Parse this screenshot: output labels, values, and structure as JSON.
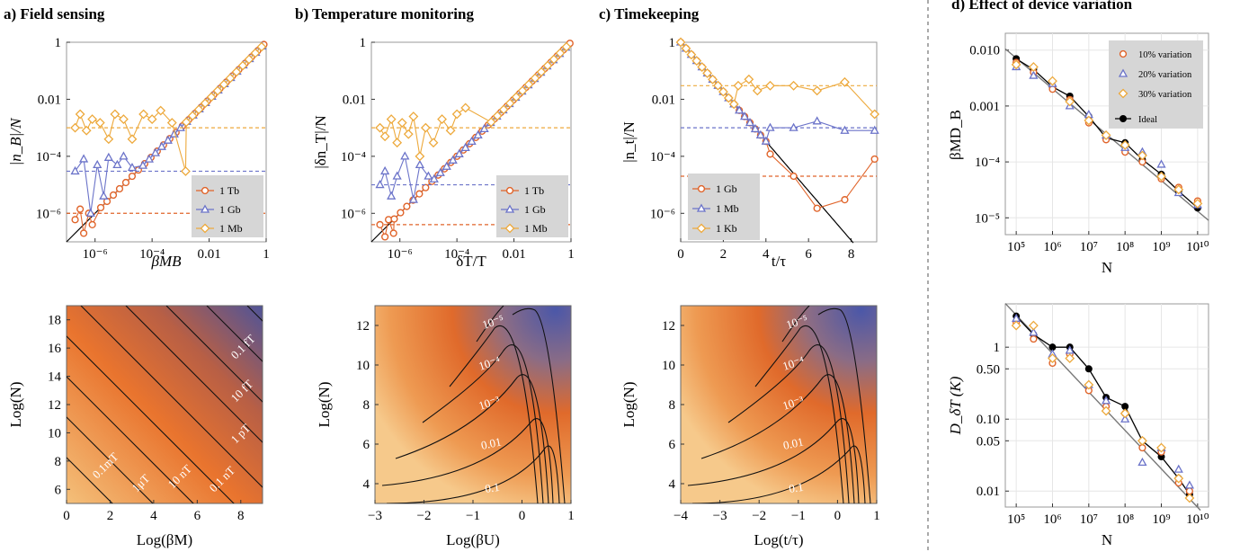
{
  "panels": {
    "a": {
      "title": "a) Field sensing",
      "xlabel": "βMB",
      "ylabel": "|n_B|/N",
      "bottom_xlabel": "Log(βM)",
      "bottom_ylabel": "Log(N)"
    },
    "b": {
      "title": "b) Temperature monitoring",
      "xlabel": "δT/T",
      "ylabel": "|δn_T|/N",
      "bottom_xlabel": "Log(βU)",
      "bottom_ylabel": "Log(N)"
    },
    "c": {
      "title": "c) Timekeeping",
      "xlabel": "t/τ",
      "ylabel": "|n_t|/N",
      "bottom_xlabel": "Log(t/τ)",
      "bottom_ylabel": "Log(N)"
    },
    "d": {
      "title": "d) Effect of device variation",
      "top_xlabel": "N",
      "top_ylabel": "βMD_B",
      "bottom_xlabel": "N",
      "bottom_ylabel": "D_δT (K)"
    }
  },
  "colors": {
    "orange": "#e0642a",
    "blue": "#6b73c9",
    "gold": "#eda93c",
    "black": "#000000"
  },
  "chart_data": [
    {
      "id": "a_top",
      "type": "line",
      "log_x": true,
      "log_y": true,
      "xlim": [
        1e-07,
        1
      ],
      "ylim": [
        1e-07,
        1
      ],
      "x_ticks": [
        "10⁻⁶",
        "10⁻⁴",
        "0.01",
        "1"
      ],
      "y_ticks": [
        "10⁻⁶",
        "10⁻⁴",
        "0.01",
        "1"
      ],
      "legend": [
        "1 Tb",
        "1 Gb",
        "1 Mb"
      ],
      "legend_position": "bottom-right",
      "series": [
        {
          "name": "1 Tb",
          "floor": 1e-06,
          "noise": [
            [
              2e-07,
              6e-07
            ],
            [
              3e-07,
              1.4e-06
            ],
            [
              4e-07,
              2e-07
            ],
            [
              6e-07,
              1e-06
            ],
            [
              8e-07,
              4e-07
            ]
          ]
        },
        {
          "name": "1 Gb",
          "floor": 3e-05,
          "noise": [
            [
              2e-07,
              3e-05
            ],
            [
              4e-07,
              8e-05
            ],
            [
              7e-07,
              1e-06
            ],
            [
              1.2e-06,
              5e-05
            ],
            [
              2e-06,
              4e-06
            ],
            [
              3e-06,
              9e-05
            ],
            [
              6e-06,
              5e-05
            ],
            [
              1e-05,
              0.0001
            ],
            [
              2e-05,
              4e-05
            ]
          ]
        },
        {
          "name": "1 Mb",
          "floor": 0.001,
          "noise": [
            [
              2e-07,
              0.001
            ],
            [
              3e-07,
              0.003
            ],
            [
              5e-07,
              0.0008
            ],
            [
              8e-07,
              0.002
            ],
            [
              1.5e-06,
              0.0015
            ],
            [
              3e-06,
              0.0004
            ],
            [
              5e-06,
              0.003
            ],
            [
              1e-05,
              0.002
            ],
            [
              2e-05,
              0.0004
            ],
            [
              5e-05,
              0.003
            ],
            [
              0.0001,
              0.002
            ],
            [
              0.0002,
              0.004
            ],
            [
              0.0005,
              0.0015
            ],
            [
              0.0015,
              3e-05
            ]
          ]
        }
      ],
      "ideal": "y = x"
    },
    {
      "id": "b_top",
      "type": "line",
      "log_x": true,
      "log_y": true,
      "xlim": [
        1e-07,
        1
      ],
      "ylim": [
        1e-07,
        1
      ],
      "x_ticks": [
        "10⁻⁶",
        "10⁻⁴",
        "0.01",
        "1"
      ],
      "y_ticks": [
        "10⁻⁶",
        "10⁻⁴",
        "0.01",
        "1"
      ],
      "legend": [
        "1 Tb",
        "1 Gb",
        "1 Mb"
      ],
      "legend_position": "bottom-right",
      "series": [
        {
          "name": "1 Tb",
          "floor": 4e-07,
          "noise": [
            [
              2e-07,
              4e-07
            ],
            [
              3e-07,
              1.5e-07
            ],
            [
              4e-07,
              6e-07
            ],
            [
              6e-07,
              2e-07
            ]
          ]
        },
        {
          "name": "1 Gb",
          "floor": 1e-05,
          "noise": [
            [
              2e-07,
              1e-05
            ],
            [
              3e-07,
              3e-05
            ],
            [
              5e-07,
              4e-06
            ],
            [
              8e-07,
              2e-05
            ],
            [
              1.5e-06,
              0.0001
            ],
            [
              3e-06,
              3e-06
            ],
            [
              5e-06,
              5e-05
            ],
            [
              1e-05,
              2e-05
            ]
          ]
        },
        {
          "name": "1 Mb",
          "floor": 0.001,
          "noise": [
            [
              2e-07,
              0.001
            ],
            [
              3e-07,
              0.0005
            ],
            [
              5e-07,
              0.002
            ],
            [
              8e-07,
              0.0003
            ],
            [
              1.2e-06,
              0.0015
            ],
            [
              2e-06,
              0.0006
            ],
            [
              3e-06,
              0.0025
            ],
            [
              5e-06,
              0.0001
            ],
            [
              8e-06,
              0.001
            ],
            [
              1.5e-05,
              0.0003
            ],
            [
              3e-05,
              0.002
            ],
            [
              6e-05,
              0.0008
            ],
            [
              0.0001,
              0.003
            ],
            [
              0.0002,
              0.005
            ]
          ]
        }
      ],
      "ideal": "y = x"
    },
    {
      "id": "c_top",
      "type": "line",
      "log_x": false,
      "log_y": true,
      "xlim": [
        0,
        9.2
      ],
      "ylim": [
        1e-07,
        1
      ],
      "x_ticks": [
        "0",
        "2",
        "4",
        "6",
        "8"
      ],
      "y_ticks": [
        "10⁻⁶",
        "10⁻⁴",
        "0.01",
        "1"
      ],
      "legend": [
        "1 Gb",
        "1 Mb",
        "1 Kb"
      ],
      "legend_position": "bottom-left",
      "series": [
        {
          "name": "1 Gb",
          "floor": 2e-05,
          "tail": [
            [
              4.2,
              0.00012
            ],
            [
              5.3,
              2e-05
            ],
            [
              6.4,
              1.5e-06
            ],
            [
              7.7,
              3e-06
            ],
            [
              9.1,
              8e-05
            ]
          ]
        },
        {
          "name": "1 Mb",
          "floor": 0.001,
          "tail": [
            [
              4.2,
              0.001
            ],
            [
              5.3,
              0.001
            ],
            [
              6.4,
              0.0017
            ],
            [
              7.7,
              0.0008
            ],
            [
              9.1,
              0.0008
            ]
          ]
        },
        {
          "name": "1 Kb",
          "floor": 0.03,
          "tail": [
            [
              2.7,
              0.03
            ],
            [
              3.2,
              0.05
            ],
            [
              3.6,
              0.02
            ],
            [
              4.2,
              0.03
            ],
            [
              5.3,
              0.03
            ],
            [
              6.4,
              0.02
            ],
            [
              7.7,
              0.04
            ],
            [
              9.1,
              0.003
            ]
          ]
        }
      ],
      "ideal": "y = exp(-2 x)"
    },
    {
      "id": "d_top",
      "type": "scatter",
      "log_x": true,
      "log_y": true,
      "xlim": [
        50000.0,
        20000000000.0
      ],
      "ylim": [
        5e-06,
        0.02
      ],
      "x_ticks": [
        "10⁵",
        "10⁶",
        "10⁷",
        "10⁸",
        "10⁹",
        "10¹⁰"
      ],
      "y_ticks": [
        "10⁻⁵",
        "10⁻⁴",
        "0.001",
        "0.010"
      ],
      "legend": [
        "10% variation",
        "20% variation",
        "30% variation",
        "Ideal"
      ],
      "legend_position": "top-right",
      "x": [
        100000.0,
        300000.0,
        1000000.0,
        3000000.0,
        10000000.0,
        30000000.0,
        100000000.0,
        300000000.0,
        1000000000.0,
        3000000000.0,
        10000000000.0
      ],
      "series": [
        {
          "name": "Ideal",
          "values": [
            0.007,
            0.0045,
            0.0022,
            0.0015,
            0.00065,
            0.00027,
            0.00022,
            0.00011,
            6e-05,
            3e-05,
            1.5e-05
          ]
        },
        {
          "name": "10% variation",
          "values": [
            0.006,
            0.004,
            0.002,
            0.0013,
            0.0005,
            0.00025,
            0.00015,
            0.0001,
            5e-05,
            3.5e-05,
            2e-05
          ]
        },
        {
          "name": "20% variation",
          "values": [
            0.005,
            0.0035,
            0.0025,
            0.001,
            0.0007,
            0.0003,
            0.00018,
            0.00015,
            9e-05,
            2.8e-05,
            1.7e-05
          ]
        },
        {
          "name": "30% variation",
          "values": [
            0.0055,
            0.005,
            0.0028,
            0.0012,
            0.00055,
            0.0003,
            0.0002,
            0.00013,
            5.5e-05,
            3.2e-05,
            1.8e-05
          ]
        }
      ]
    },
    {
      "id": "d_bottom",
      "type": "scatter",
      "log_x": true,
      "log_y": true,
      "xlim": [
        50000.0,
        20000000000.0
      ],
      "ylim": [
        0.006,
        4
      ],
      "x_ticks": [
        "10⁵",
        "10⁶",
        "10⁷",
        "10⁸",
        "10⁹",
        "10¹⁰"
      ],
      "y_ticks": [
        "0.01",
        "0.05",
        "0.10",
        "0.50",
        "1"
      ],
      "x": [
        100000.0,
        300000.0,
        1000000.0,
        3000000.0,
        10000000.0,
        30000000.0,
        100000000.0,
        300000000.0,
        1000000000.0,
        3000000000.0,
        6000000000.0
      ],
      "series": [
        {
          "name": "Ideal",
          "values": [
            2.7,
            1.5,
            1.0,
            1.0,
            0.5,
            0.2,
            0.15,
            0.05,
            0.03,
            0.015,
            0.009
          ]
        },
        {
          "name": "10% variation",
          "values": [
            2.2,
            1.3,
            0.6,
            0.8,
            0.25,
            0.15,
            0.12,
            0.04,
            0.035,
            0.013,
            0.01
          ]
        },
        {
          "name": "20% variation",
          "values": [
            2.5,
            1.6,
            0.8,
            0.9,
            0.3,
            0.18,
            0.1,
            0.025,
            0.04,
            0.02,
            0.012
          ]
        },
        {
          "name": "30% variation",
          "values": [
            2.0,
            2.0,
            0.7,
            0.7,
            0.3,
            0.13,
            0.12,
            0.05,
            0.04,
            0.015,
            0.008
          ]
        }
      ]
    },
    {
      "id": "a_bottom",
      "type": "heatmap",
      "xlim": [
        0,
        9
      ],
      "ylim": [
        5,
        19
      ],
      "x_ticks": [
        "0",
        "2",
        "4",
        "6",
        "8"
      ],
      "y_ticks": [
        "6",
        "8",
        "10",
        "12",
        "14",
        "16",
        "18"
      ],
      "contour_labels": [
        "0.1mT",
        "1μT",
        "10 nT",
        "0.1 nT",
        "1 pT",
        "10 fT",
        "0.1 fT"
      ]
    },
    {
      "id": "b_bottom",
      "type": "heatmap",
      "xlim": [
        -3,
        1
      ],
      "ylim": [
        3,
        13
      ],
      "x_ticks": [
        "−3",
        "−2",
        "−1",
        "0",
        "1"
      ],
      "y_ticks": [
        "4",
        "6",
        "8",
        "10",
        "12"
      ],
      "contour_labels": [
        "0.1",
        "0.01",
        "10⁻³",
        "10⁻⁴",
        "10⁻⁵"
      ]
    },
    {
      "id": "c_bottom",
      "type": "heatmap",
      "xlim": [
        -4,
        1
      ],
      "ylim": [
        3,
        13
      ],
      "x_ticks": [
        "−4",
        "−3",
        "−2",
        "−1",
        "0",
        "1"
      ],
      "y_ticks": [
        "4",
        "6",
        "8",
        "10",
        "12"
      ],
      "contour_labels": [
        "0.1",
        "0.01",
        "10⁻³",
        "10⁻⁴",
        "10⁻⁵"
      ]
    }
  ]
}
